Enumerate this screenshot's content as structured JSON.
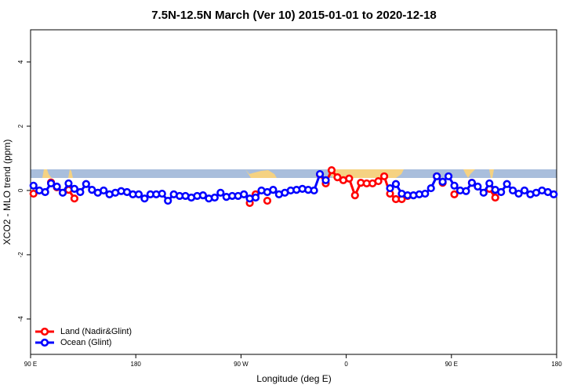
{
  "chart_data": {
    "type": "line",
    "title": "7.5N-12.5N March (Ver 10)   2015-01-01 to 2020-12-18",
    "x_label": "Longitude (deg E)",
    "y_label": "XCO2 - MLO trend (ppm)",
    "xlim": [
      90,
      540
    ],
    "ylim": [
      -5.1,
      5
    ],
    "xticks": [
      {
        "value": 90,
        "label": "90 E"
      },
      180,
      {
        "value": 270,
        "label": "90 W"
      },
      {
        "value": 360,
        "label": "0"
      },
      {
        "value": 450,
        "label": "90 E"
      },
      {
        "value": 540,
        "label": "180"
      }
    ],
    "yticks": [
      -4,
      -2,
      0,
      2,
      4
    ],
    "legend": "bottom-left",
    "x": [
      92.5,
      97.5,
      102.5,
      107.5,
      112.5,
      117.5,
      122.5,
      127.5,
      132.5,
      137.5,
      142.5,
      147.5,
      152.5,
      157.5,
      162.5,
      167.5,
      172.5,
      177.5,
      182.5,
      187.5,
      192.5,
      197.5,
      202.5,
      207.5,
      212.5,
      217.5,
      222.5,
      227.5,
      232.5,
      237.5,
      242.5,
      247.5,
      252.5,
      257.5,
      262.5,
      267.5,
      272.5,
      277.5,
      282.5,
      287.5,
      292.5,
      297.5,
      302.5,
      307.5,
      312.5,
      317.5,
      322.5,
      327.5,
      332.5,
      337.5,
      342.5,
      347.5,
      352.5,
      357.5,
      362.5,
      367.5,
      372.5,
      377.5,
      382.5,
      387.5,
      392.5,
      397.5,
      402.5,
      407.5,
      412.5,
      417.5,
      422.5,
      427.5,
      432.5,
      437.5,
      442.5,
      447.5,
      452.5,
      457.5,
      462.5,
      467.5,
      472.5,
      477.5,
      482.5,
      487.5,
      492.5,
      497.5,
      502.5,
      507.5,
      512.5,
      517.5,
      522.5,
      527.5,
      532.5,
      537.5
    ],
    "series": [
      {
        "name": "Land (Nadir&Glint)",
        "color": "#ff0000",
        "values": [
          -0.1,
          null,
          null,
          0.25,
          0.1,
          null,
          0.02,
          -0.25,
          null,
          null,
          null,
          null,
          null,
          null,
          null,
          null,
          null,
          null,
          null,
          null,
          null,
          null,
          null,
          null,
          null,
          null,
          null,
          null,
          null,
          null,
          null,
          null,
          null,
          null,
          null,
          null,
          null,
          -0.39,
          -0.12,
          null,
          -0.32,
          null,
          null,
          null,
          null,
          null,
          null,
          null,
          null,
          0.5,
          0.22,
          0.63,
          0.41,
          0.32,
          0.37,
          -0.15,
          0.24,
          0.22,
          0.22,
          0.29,
          0.44,
          -0.1,
          -0.27,
          -0.27,
          -0.17,
          null,
          null,
          null,
          null,
          0.44,
          0.24,
          null,
          -0.12,
          null,
          null,
          0.24,
          null,
          null,
          0.05,
          -0.22,
          null,
          null,
          null,
          null,
          null,
          null,
          null,
          null,
          null,
          null
        ]
      },
      {
        "name": "Ocean (Glint)",
        "color": "#0000ff",
        "values": [
          0.15,
          0,
          -0.05,
          0.22,
          0.12,
          -0.07,
          0.22,
          0.05,
          -0.05,
          0.2,
          0.02,
          -0.07,
          0,
          -0.12,
          -0.07,
          -0.02,
          -0.05,
          -0.12,
          -0.12,
          -0.25,
          -0.12,
          -0.12,
          -0.1,
          -0.32,
          -0.12,
          -0.17,
          -0.17,
          -0.22,
          -0.17,
          -0.15,
          -0.25,
          -0.22,
          -0.07,
          -0.2,
          -0.17,
          -0.17,
          -0.12,
          -0.25,
          -0.22,
          0,
          -0.05,
          0.02,
          -0.12,
          -0.07,
          0,
          0.02,
          0.05,
          0.02,
          0,
          0.51,
          0.32,
          null,
          null,
          null,
          null,
          null,
          null,
          null,
          null,
          null,
          null,
          0.07,
          0.2,
          -0.1,
          -0.15,
          -0.15,
          -0.12,
          -0.1,
          0.07,
          0.44,
          0.27,
          0.44,
          0.15,
          0,
          -0.02,
          0.24,
          0.12,
          -0.07,
          0.22,
          0.02,
          -0.05,
          0.2,
          0,
          -0.1,
          0,
          -0.12,
          -0.07,
          0,
          -0.05,
          -0.12
        ]
      }
    ]
  }
}
